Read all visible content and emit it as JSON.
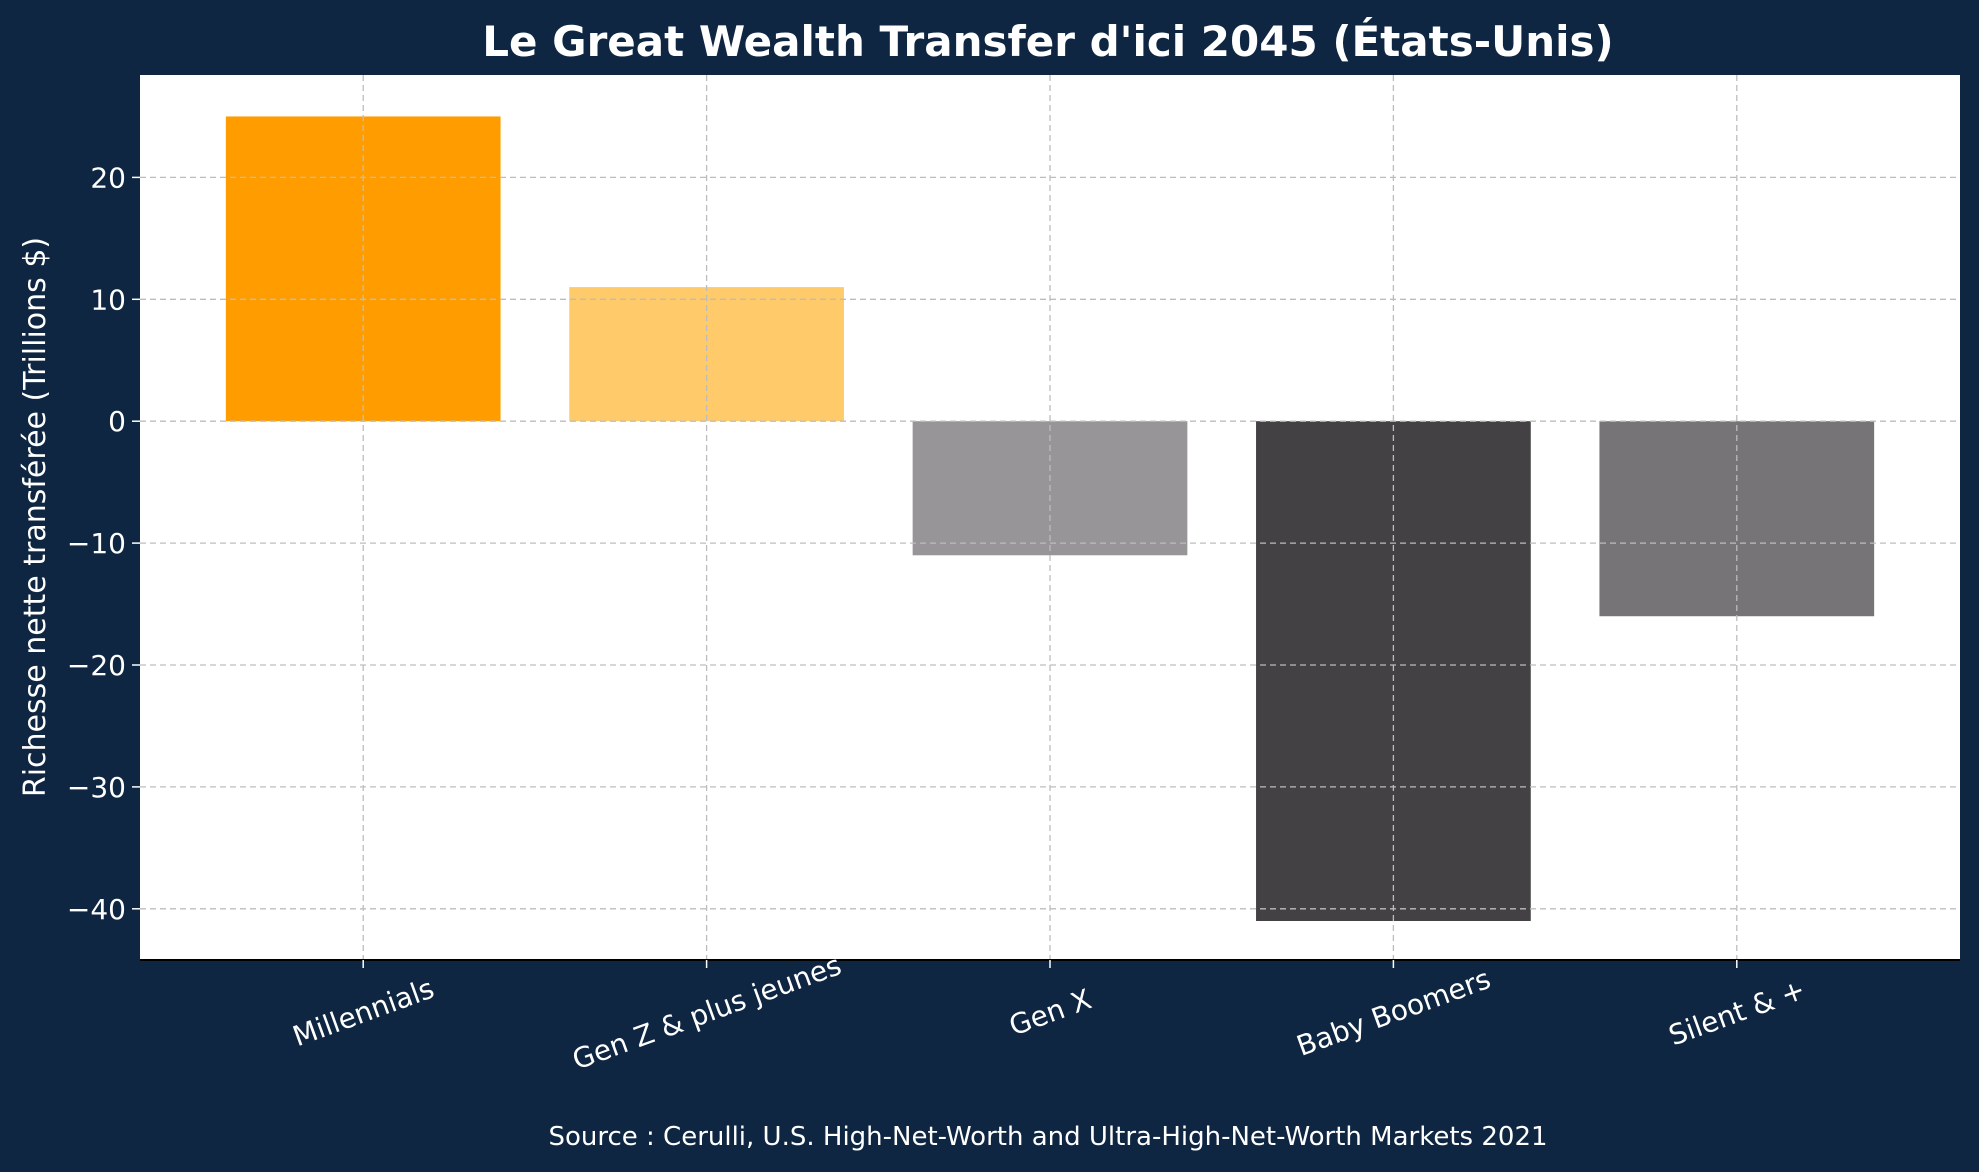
{
  "chart_data": {
    "type": "bar",
    "title": "Le Great Wealth Transfer d'ici 2045 (États-Unis)",
    "ylabel": "Richesse nette transférée (Trillions $)",
    "xlabel": "",
    "categories": [
      "Millennials",
      "Gen Z & plus jeunes",
      "Gen X",
      "Baby Boomers",
      "Silent & +"
    ],
    "values": [
      25,
      11,
      -11,
      -41,
      -16
    ],
    "colors": [
      "#ff9d00",
      "#ffca69",
      "#979597",
      "#434143",
      "#767476"
    ],
    "ylim": [
      -44.2,
      28.4
    ],
    "yticks": [
      20,
      10,
      0,
      -10,
      -20,
      -30,
      -40
    ],
    "ytick_labels": [
      "20",
      "10",
      "0",
      "−10",
      "−20",
      "−30",
      "−40"
    ],
    "grid": true,
    "source": "Source : Cerulli, U.S. High-Net-Worth and Ultra-High-Net-Worth Markets 2021"
  },
  "colors": {
    "background": "#0e2642",
    "plot_area": "#ffffff",
    "grid": "#bdbdbd",
    "text": "#ffffff"
  }
}
